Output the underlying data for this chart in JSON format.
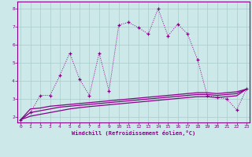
{
  "x": [
    0,
    1,
    2,
    3,
    4,
    5,
    6,
    7,
    8,
    9,
    10,
    11,
    12,
    13,
    14,
    15,
    16,
    17,
    18,
    19,
    20,
    21,
    22,
    23
  ],
  "line1_y": [
    1.85,
    2.25,
    3.2,
    3.2,
    4.3,
    5.55,
    4.1,
    3.2,
    5.55,
    3.45,
    7.1,
    7.25,
    6.95,
    6.6,
    8.0,
    6.5,
    7.15,
    6.6,
    5.2,
    3.2,
    3.1,
    3.0,
    2.4,
    3.55
  ],
  "line2_y": [
    1.85,
    2.45,
    2.5,
    2.6,
    2.65,
    2.7,
    2.75,
    2.8,
    2.85,
    2.9,
    2.95,
    3.0,
    3.05,
    3.1,
    3.15,
    3.2,
    3.25,
    3.3,
    3.35,
    3.35,
    3.3,
    3.35,
    3.4,
    3.55
  ],
  "line3_y": [
    1.85,
    2.25,
    2.35,
    2.45,
    2.55,
    2.6,
    2.65,
    2.7,
    2.75,
    2.8,
    2.85,
    2.9,
    2.95,
    3.0,
    3.05,
    3.1,
    3.15,
    3.2,
    3.25,
    3.25,
    3.2,
    3.25,
    3.3,
    3.55
  ],
  "line4_y": [
    1.85,
    2.05,
    2.15,
    2.25,
    2.35,
    2.45,
    2.52,
    2.58,
    2.63,
    2.68,
    2.73,
    2.78,
    2.83,
    2.88,
    2.93,
    2.98,
    3.03,
    3.08,
    3.13,
    3.13,
    3.08,
    3.13,
    3.18,
    3.55
  ],
  "bg_color": "#cce8e8",
  "line_color": "#880088",
  "grid_color": "#aacccc",
  "xlabel": "Windchill (Refroidissement éolien,°C)",
  "ylim": [
    1.7,
    8.4
  ],
  "xlim": [
    -0.3,
    23.3
  ],
  "yticks": [
    2,
    3,
    4,
    5,
    6,
    7,
    8
  ],
  "xticks": [
    0,
    1,
    2,
    3,
    4,
    5,
    6,
    7,
    8,
    9,
    10,
    11,
    12,
    13,
    14,
    15,
    16,
    17,
    18,
    19,
    20,
    21,
    22,
    23
  ]
}
